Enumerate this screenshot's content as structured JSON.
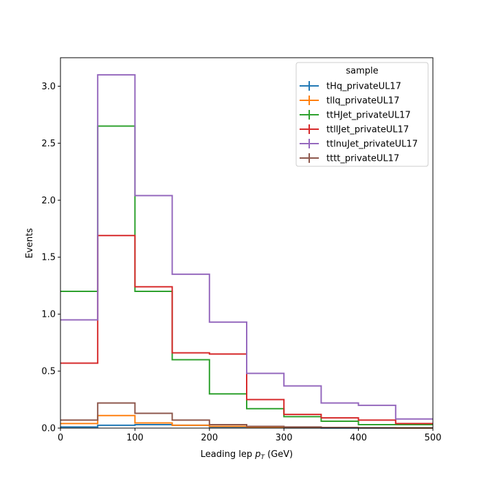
{
  "chart_data": {
    "type": "step-histogram",
    "xlabel_main": "Leading lep ",
    "xlabel_math": "p",
    "xlabel_sub": "T",
    "xlabel_unit": " (GeV)",
    "ylabel": "Events",
    "xlim": [
      0,
      500
    ],
    "ylim": [
      0,
      3.25
    ],
    "bin_edges": [
      0,
      50,
      100,
      150,
      200,
      250,
      300,
      350,
      400,
      450,
      500
    ],
    "xticks": [
      "0",
      "100",
      "200",
      "300",
      "400",
      "500"
    ],
    "yticks": [
      "0.0",
      "0.5",
      "1.0",
      "1.5",
      "2.0",
      "2.5",
      "3.0"
    ],
    "legend_title": "sample",
    "legend_position": "top-right",
    "series": [
      {
        "name": "tHq_privateUL17",
        "color": "#1f77b4",
        "values": [
          0.01,
          0.025,
          0.03,
          0.025,
          0.01,
          0.005,
          0.002,
          0.001,
          0.001,
          0.0
        ]
      },
      {
        "name": "tllq_privateUL17",
        "color": "#ff7f0e",
        "values": [
          0.04,
          0.11,
          0.045,
          0.025,
          0.015,
          0.01,
          0.005,
          0.003,
          0.002,
          0.001
        ]
      },
      {
        "name": "ttHJet_privateUL17",
        "color": "#2ca02c",
        "values": [
          1.2,
          2.65,
          1.2,
          0.6,
          0.3,
          0.17,
          0.1,
          0.06,
          0.03,
          0.03
        ]
      },
      {
        "name": "ttllJet_privateUL17",
        "color": "#d62728",
        "values": [
          0.57,
          1.69,
          1.24,
          0.66,
          0.65,
          0.25,
          0.12,
          0.09,
          0.07,
          0.04
        ]
      },
      {
        "name": "ttlnuJet_privateUL17",
        "color": "#9467bd",
        "values": [
          0.95,
          3.1,
          2.04,
          1.35,
          0.93,
          0.48,
          0.37,
          0.22,
          0.2,
          0.08
        ]
      },
      {
        "name": "tttt_privateUL17",
        "color": "#8c564b",
        "values": [
          0.07,
          0.22,
          0.13,
          0.07,
          0.03,
          0.015,
          0.01,
          0.005,
          0.003,
          0.002
        ]
      }
    ]
  }
}
